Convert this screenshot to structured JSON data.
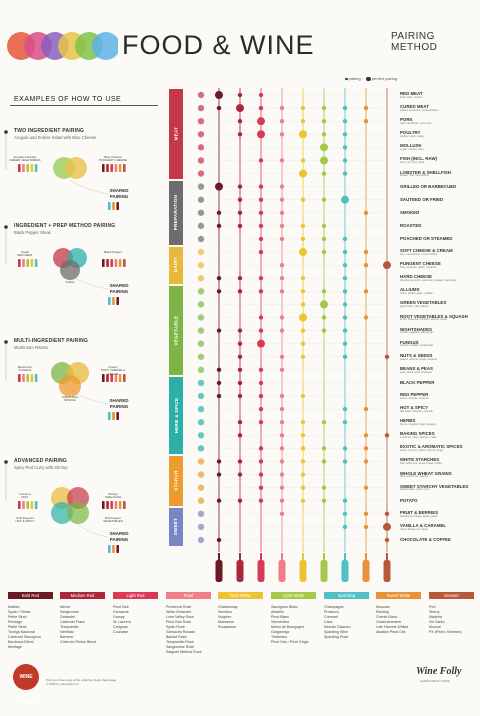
{
  "header": {
    "title": "FOOD & WINE",
    "subtitle_1": "PAIRING",
    "subtitle_2": "METHOD",
    "logo_colors": [
      "#e4573a",
      "#d84d8b",
      "#8a5fbf",
      "#e8c34a",
      "#7fc24a",
      "#5cb3e6"
    ]
  },
  "legend": {
    "pairing": "pairing",
    "perfect": "perfect pairing"
  },
  "examples": {
    "title": "EXAMPLES OF HOW TO USE",
    "items": [
      {
        "heading": "TWO INGREDIENT PAIRING",
        "sub": "Arugula and Endive Salad with Blue Cheese",
        "left_label": "Arugula & Endive\nGREEN VEGETABLES",
        "right_label": "Blue Cheese\nPUNGENT CHEESE"
      },
      {
        "heading": "INGREDIENT + PREP METHOD PAIRING",
        "sub": "Black Pepper Steak",
        "left_label": "Steak\nRED MEAT",
        "right_label": "Black Pepper",
        "bottom_label": "Grilled"
      },
      {
        "heading": "MULTI-INGREDIENT PAIRING",
        "sub": "Mushroom Risotto",
        "left_label": "Mushroom\nFUNGUS",
        "right_label": "Cream\nSOFT CHEESE & CREAM",
        "bottom_label": "Arborio Rice\nSTARCH"
      },
      {
        "heading": "ADVANCED PAIRING",
        "sub": "Spicy Red Curry with Shrimp",
        "left_label": "Coconut\nMILK",
        "right_label": "Shrimp\nSHELLFISH",
        "bottom_left": "Chili Peppers\nHOT & SPICY",
        "bottom_right": "Bell Pepper\nVEGETABLES"
      }
    ],
    "shared": "SHARED\nPAIRING"
  },
  "categories": [
    {
      "name": "MEAT",
      "color": "#c4364a"
    },
    {
      "name": "PREPARATION",
      "color": "#6d6d6d"
    },
    {
      "name": "DAIRY",
      "color": "#e8b93a"
    },
    {
      "name": "VEGETABLE",
      "color": "#7bb544"
    },
    {
      "name": "HERB & SPICE",
      "color": "#2ab0a8"
    },
    {
      "name": "STARCH",
      "color": "#ee9b2f"
    },
    {
      "name": "SWEET",
      "color": "#7a86c4"
    }
  ],
  "foods": [
    {
      "name": "RED MEAT",
      "sub": "beef, lamb, venison",
      "cat": 0
    },
    {
      "name": "CURED MEAT",
      "sub": "salami, prosciutto, smoked bacon",
      "cat": 0
    },
    {
      "name": "PORK",
      "sub": "roast, tenderloin, pork chop",
      "cat": 0
    },
    {
      "name": "POULTRY",
      "sub": "chicken, duck, turkey",
      "cat": 0
    },
    {
      "name": "MOLLUSK",
      "sub": "oyster, mussel, clam",
      "cat": 0
    },
    {
      "name": "FISH (INCL. RAW)",
      "sub": "tuna, cod, trout, bass",
      "cat": 0
    },
    {
      "name": "LOBSTER & SHELLFISH",
      "sub": "lobster, crab, langoustine",
      "cat": 0
    },
    {
      "name": "GRILLED OR BARBECUED",
      "sub": "",
      "cat": 1
    },
    {
      "name": "SAUTEED OR FRIED",
      "sub": "",
      "cat": 1
    },
    {
      "name": "SMOKED",
      "sub": "",
      "cat": 1
    },
    {
      "name": "ROASTED",
      "sub": "",
      "cat": 1
    },
    {
      "name": "POACHED OR STEAMED",
      "sub": "",
      "cat": 1
    },
    {
      "name": "SOFT CHEESE & CREAM",
      "sub": "brie, mascarpone, creme fraiche",
      "cat": 2
    },
    {
      "name": "PUNGENT CHEESE",
      "sub": "blue, epoisses, stilton, roquefort",
      "cat": 2
    },
    {
      "name": "HARD CHEESE",
      "sub": "cheddar, pecorino, parmesan, asiago, manchego",
      "cat": 2
    },
    {
      "name": "ALLIUMS",
      "sub": "onion, shallot, garlic, scallion",
      "cat": 3
    },
    {
      "name": "GREEN VEGETABLES",
      "sub": "green bean, kale, lettuce",
      "cat": 3
    },
    {
      "name": "ROOT VEGETABLES & SQUASH",
      "sub": "turnip, butternut, pumpkin, carrots, sweet",
      "cat": 3
    },
    {
      "name": "NIGHTSHADES",
      "sub": "tomato, eggplant, bell pepper",
      "cat": 3
    },
    {
      "name": "FUNGUS",
      "sub": "cremini, maitake, chanterelle",
      "cat": 3
    },
    {
      "name": "NUTS & SEEDS",
      "sub": "peanut, almond, pecan, sesame",
      "cat": 3
    },
    {
      "name": "BEANS & PEAS",
      "sub": "pinto, black, lentil, chickpea",
      "cat": 3
    },
    {
      "name": "BLACK PEPPER",
      "sub": "",
      "cat": 4
    },
    {
      "name": "RED PEPPER",
      "sub": "ancho, chipotle, cayenne",
      "cat": 4
    },
    {
      "name": "HOT & SPICY",
      "sub": "thai basil, habanero, sichuan",
      "cat": 4
    },
    {
      "name": "HERBS",
      "sub": "thyme, oregano, basil, tarragon",
      "cat": 4
    },
    {
      "name": "BAKING SPICES",
      "sub": "cinnamon, clove, allspice, mace",
      "cat": 4
    },
    {
      "name": "EXOTIC & AROMATIC SPICES",
      "sub": "anise, turmeric, saffron, fennel, ginger",
      "cat": 4
    },
    {
      "name": "WHITE STARCHES",
      "sub": "flour, white rice, pasta, bread, tortilla",
      "cat": 5
    },
    {
      "name": "WHOLE WHEAT GRAINS",
      "sub": "farro, brown rice, quinoa",
      "cat": 5
    },
    {
      "name": "SWEET STARCHY VEGETABLES",
      "sub": "sweet potato, yucca, corn",
      "cat": 5
    },
    {
      "name": "POTATO",
      "sub": "",
      "cat": 5
    },
    {
      "name": "FRUIT & BERRIES",
      "sub": "strawberry, orange, apple, peach",
      "cat": 6
    },
    {
      "name": "VANILLA & CARAMEL",
      "sub": "creme brulee, ice cream",
      "cat": 6
    },
    {
      "name": "CHOCOLATE & COFFEE",
      "sub": "",
      "cat": 6
    }
  ],
  "wines": [
    {
      "name": "Bold Red",
      "color": "#6a1a24",
      "list": [
        "Malbec",
        "Syrah / Shiraz",
        "Petite Sirah",
        "Pinotage",
        "Petite Sirah",
        "Touriga Nacional",
        "Cabernet Sauvignon",
        "Bordeaux Blend",
        "Meritage"
      ]
    },
    {
      "name": "Medium Red",
      "color": "#a8283a",
      "list": [
        "Merlot",
        "Sangiovese",
        "Zinfandel",
        "Cabernet Franc",
        "Tempranillo",
        "Nebbiolo",
        "Barbera",
        "Côtes du Rhône Blend"
      ]
    },
    {
      "name": "Light Red",
      "color": "#d83a55",
      "list": [
        "Pinot Noir",
        "Grenache",
        "Gamay",
        "St. Laurent",
        "Carignan",
        "Counoise"
      ]
    },
    {
      "name": "Rosé",
      "color": "#ef7f86",
      "list": [
        "Provencal Rosé",
        "White Zinfandel",
        "Loire Valley Rosé",
        "Pinot Noir Rosé",
        "Syrah Rosé",
        "Garnacha Rosado",
        "Bandol Rosé",
        "Tempranillo Rosé",
        "Sangiovese Rosé",
        "Saignée Method Rosé"
      ]
    },
    {
      "name": "Rich White",
      "color": "#eec332",
      "list": [
        "Chardonnay",
        "Semillon",
        "Viognier",
        "Marsanne",
        "Roussanne"
      ]
    },
    {
      "name": "Light White",
      "color": "#a6c84a",
      "list": [
        "Sauvignon Blanc",
        "Albariño",
        "Pinot Blanc",
        "Vermentino",
        "Melon de Bourgogne",
        "Garganega",
        "Trebbiano",
        "Pinot Gris / Pinot Grigio"
      ]
    },
    {
      "name": "Sparkling",
      "color": "#4fc0c6",
      "list": [
        "Champagne",
        "Prosecco",
        "Crémant",
        "Cava",
        "Metodo Classico",
        "Sparkling Wine",
        "Sparkling Rosé"
      ]
    },
    {
      "name": "Sweet White",
      "color": "#e8923a",
      "list": [
        "Moscato",
        "Riesling",
        "Chenin Blanc",
        "Gewürztraminer",
        "Late Harvest Whites",
        "Alsatian Pinot Gris"
      ]
    },
    {
      "name": "Dessert",
      "color": "#b8583a",
      "list": [
        "Port",
        "Sherry",
        "Madeira",
        "Vin Santo",
        "Muscat",
        "PX (Pedro Ximénez)"
      ]
    }
  ],
  "pairings": [
    {
      "food": 0,
      "w": [
        [
          0,
          2
        ],
        [
          1,
          1
        ],
        [
          2,
          0
        ]
      ]
    },
    {
      "food": 1,
      "w": [
        [
          0,
          1
        ],
        [
          1,
          2
        ],
        [
          2,
          1
        ],
        [
          3,
          1
        ],
        [
          4,
          1
        ],
        [
          5,
          1
        ],
        [
          6,
          1
        ],
        [
          7,
          1
        ]
      ]
    },
    {
      "food": 2,
      "w": [
        [
          1,
          1
        ],
        [
          2,
          2
        ],
        [
          3,
          1
        ],
        [
          4,
          1
        ],
        [
          5,
          1
        ],
        [
          6,
          1
        ],
        [
          7,
          1
        ]
      ]
    },
    {
      "food": 3,
      "w": [
        [
          1,
          1
        ],
        [
          2,
          2
        ],
        [
          3,
          1
        ],
        [
          4,
          2
        ],
        [
          5,
          1
        ],
        [
          6,
          1
        ]
      ]
    },
    {
      "food": 4,
      "w": [
        [
          5,
          2
        ],
        [
          6,
          1
        ]
      ]
    },
    {
      "food": 5,
      "w": [
        [
          2,
          1
        ],
        [
          3,
          1
        ],
        [
          4,
          1
        ],
        [
          5,
          2
        ],
        [
          6,
          1
        ]
      ]
    },
    {
      "food": 6,
      "w": [
        [
          4,
          2
        ],
        [
          5,
          1
        ],
        [
          6,
          1
        ]
      ]
    },
    {
      "food": 7,
      "w": [
        [
          0,
          2
        ],
        [
          1,
          1
        ],
        [
          2,
          1
        ],
        [
          3,
          1
        ]
      ]
    },
    {
      "food": 8,
      "w": [
        [
          1,
          1
        ],
        [
          2,
          1
        ],
        [
          3,
          1
        ],
        [
          4,
          1
        ],
        [
          5,
          1
        ],
        [
          6,
          2
        ]
      ]
    },
    {
      "food": 9,
      "w": [
        [
          0,
          1
        ],
        [
          1,
          1
        ],
        [
          2,
          1
        ],
        [
          3,
          1
        ],
        [
          7,
          1
        ]
      ]
    },
    {
      "food": 10,
      "w": [
        [
          0,
          1
        ],
        [
          1,
          1
        ],
        [
          2,
          1
        ],
        [
          3,
          1
        ],
        [
          4,
          1
        ],
        [
          5,
          1
        ]
      ]
    },
    {
      "food": 11,
      "w": [
        [
          2,
          1
        ],
        [
          3,
          1
        ],
        [
          4,
          1
        ],
        [
          5,
          1
        ],
        [
          6,
          1
        ]
      ]
    },
    {
      "food": 12,
      "w": [
        [
          2,
          1
        ],
        [
          4,
          2
        ],
        [
          5,
          1
        ],
        [
          6,
          1
        ],
        [
          7,
          1
        ]
      ]
    },
    {
      "food": 13,
      "w": [
        [
          3,
          1
        ],
        [
          6,
          1
        ],
        [
          7,
          1
        ],
        [
          8,
          2
        ]
      ]
    },
    {
      "food": 14,
      "w": [
        [
          0,
          1
        ],
        [
          1,
          1
        ],
        [
          2,
          1
        ],
        [
          3,
          1
        ],
        [
          4,
          1
        ],
        [
          6,
          1
        ]
      ]
    },
    {
      "food": 15,
      "w": [
        [
          0,
          1
        ],
        [
          1,
          1
        ],
        [
          2,
          1
        ],
        [
          3,
          1
        ],
        [
          4,
          1
        ],
        [
          5,
          1
        ],
        [
          6,
          1
        ],
        [
          7,
          1
        ]
      ]
    },
    {
      "food": 16,
      "w": [
        [
          4,
          1
        ],
        [
          5,
          2
        ],
        [
          6,
          1
        ]
      ]
    },
    {
      "food": 17,
      "w": [
        [
          2,
          1
        ],
        [
          3,
          1
        ],
        [
          4,
          2
        ],
        [
          5,
          1
        ],
        [
          6,
          1
        ],
        [
          7,
          1
        ]
      ]
    },
    {
      "food": 18,
      "w": [
        [
          0,
          1
        ],
        [
          1,
          1
        ],
        [
          2,
          1
        ],
        [
          3,
          1
        ],
        [
          4,
          1
        ],
        [
          5,
          1
        ],
        [
          6,
          1
        ]
      ]
    },
    {
      "food": 19,
      "w": [
        [
          1,
          1
        ],
        [
          2,
          2
        ],
        [
          4,
          1
        ],
        [
          6,
          1
        ]
      ]
    },
    {
      "food": 20,
      "w": [
        [
          1,
          1
        ],
        [
          3,
          1
        ],
        [
          4,
          1
        ],
        [
          6,
          1
        ],
        [
          8,
          1
        ]
      ]
    },
    {
      "food": 21,
      "w": [
        [
          0,
          1
        ],
        [
          1,
          1
        ],
        [
          2,
          1
        ],
        [
          3,
          1
        ]
      ]
    },
    {
      "food": 22,
      "w": [
        [
          0,
          1
        ],
        [
          1,
          1
        ],
        [
          2,
          1
        ]
      ]
    },
    {
      "food": 23,
      "w": [
        [
          0,
          1
        ],
        [
          1,
          1
        ],
        [
          2,
          1
        ],
        [
          3,
          1
        ],
        [
          4,
          1
        ]
      ]
    },
    {
      "food": 24,
      "w": [
        [
          2,
          1
        ],
        [
          3,
          1
        ],
        [
          6,
          1
        ],
        [
          7,
          1
        ]
      ]
    },
    {
      "food": 25,
      "w": [
        [
          1,
          1
        ],
        [
          2,
          1
        ],
        [
          3,
          1
        ],
        [
          4,
          1
        ],
        [
          5,
          1
        ],
        [
          6,
          1
        ]
      ]
    },
    {
      "food": 26,
      "w": [
        [
          1,
          1
        ],
        [
          3,
          1
        ],
        [
          4,
          1
        ],
        [
          7,
          1
        ],
        [
          8,
          1
        ]
      ]
    },
    {
      "food": 27,
      "w": [
        [
          2,
          1
        ],
        [
          3,
          1
        ],
        [
          4,
          1
        ],
        [
          5,
          1
        ],
        [
          6,
          1
        ],
        [
          7,
          1
        ]
      ]
    },
    {
      "food": 28,
      "w": [
        [
          0,
          1
        ],
        [
          1,
          1
        ],
        [
          2,
          1
        ],
        [
          3,
          1
        ],
        [
          4,
          1
        ],
        [
          5,
          1
        ],
        [
          6,
          1
        ],
        [
          7,
          1
        ]
      ]
    },
    {
      "food": 29,
      "w": [
        [
          0,
          1
        ],
        [
          1,
          1
        ],
        [
          2,
          1
        ],
        [
          3,
          1
        ],
        [
          4,
          1
        ]
      ]
    },
    {
      "food": 30,
      "w": [
        [
          2,
          1
        ],
        [
          3,
          1
        ],
        [
          4,
          1
        ],
        [
          5,
          1
        ],
        [
          7,
          1
        ]
      ]
    },
    {
      "food": 31,
      "w": [
        [
          0,
          1
        ],
        [
          1,
          1
        ],
        [
          2,
          1
        ],
        [
          3,
          1
        ],
        [
          4,
          1
        ],
        [
          5,
          1
        ],
        [
          6,
          1
        ]
      ]
    },
    {
      "food": 32,
      "w": [
        [
          3,
          1
        ],
        [
          6,
          1
        ],
        [
          7,
          1
        ],
        [
          8,
          1
        ]
      ]
    },
    {
      "food": 33,
      "w": [
        [
          6,
          1
        ],
        [
          7,
          1
        ],
        [
          8,
          2
        ]
      ]
    },
    {
      "food": 34,
      "w": [
        [
          0,
          1
        ],
        [
          8,
          1
        ]
      ]
    }
  ],
  "footer": {
    "brand": "Wine Folly",
    "brand_sub": "LEARN ABOUT WINE",
    "note_1": "Print your free copy of the ordering cheat sheet page",
    "note_2": "© 2015 by winefolly.com",
    "badge": "WINE FOLLY"
  }
}
